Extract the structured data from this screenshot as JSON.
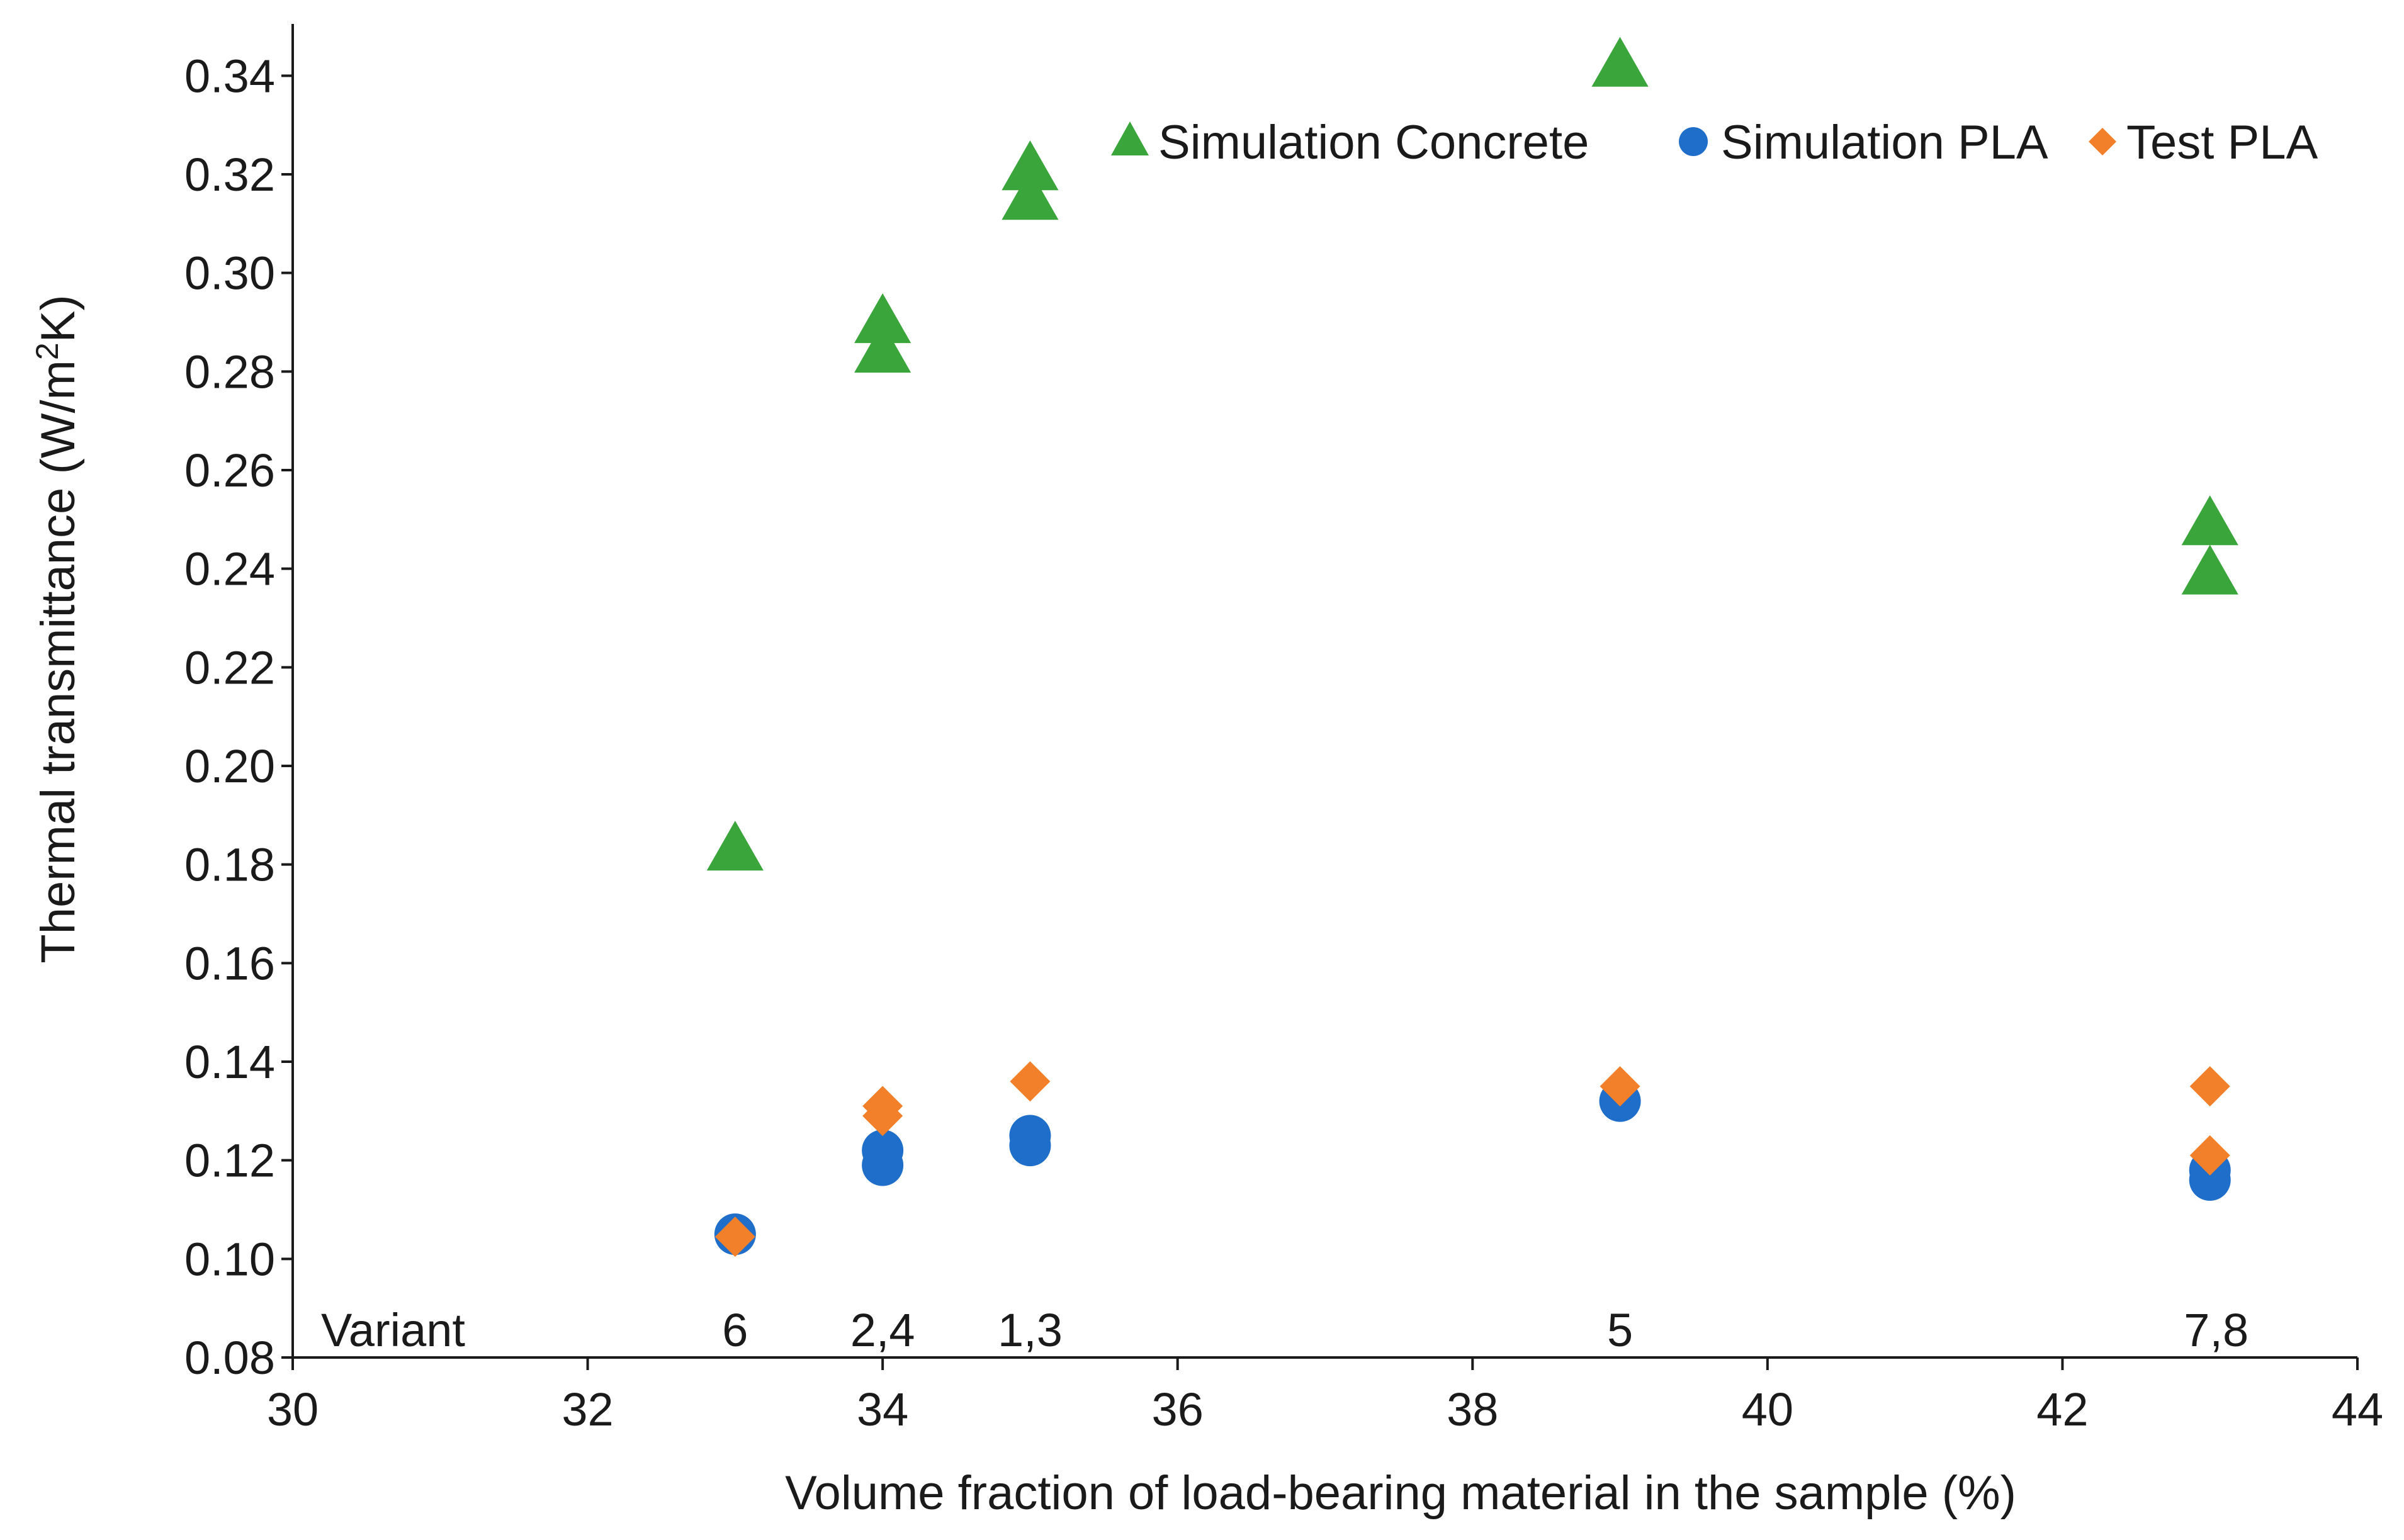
{
  "colors": {
    "concrete": "#3aa53a",
    "sim_pla": "#1f6ec9",
    "test_pla": "#f2802a",
    "axis": "#1a1a1a"
  },
  "chart_data": {
    "type": "scatter",
    "title": "",
    "xlabel": "Volume fraction of load-bearing material in the sample (%)",
    "ylabel": "Thermal transmittance (W/m²K)",
    "xlim": [
      30,
      44
    ],
    "ylim": [
      0.08,
      0.35
    ],
    "xticks": [
      30,
      32,
      34,
      36,
      38,
      40,
      42,
      44
    ],
    "xtick_labels": [
      "30",
      "32",
      "34",
      "36",
      "38",
      "40",
      "42",
      "44"
    ],
    "yticks": [
      0.08,
      0.1,
      0.12,
      0.14,
      0.16,
      0.18,
      0.2,
      0.22,
      0.24,
      0.26,
      0.28,
      0.3,
      0.32,
      0.34
    ],
    "ytick_labels": [
      "0.08",
      "0.10",
      "0.12",
      "0.14",
      "0.16",
      "0.18",
      "0.20",
      "0.22",
      "0.24",
      "0.26",
      "0.28",
      "0.30",
      "0.32",
      "0.34"
    ],
    "legend_position": "top-right",
    "series": [
      {
        "name": "Simulation Concrete",
        "marker": "triangle",
        "points": [
          [
            33,
            0.183
          ],
          [
            34,
            0.29
          ],
          [
            34,
            0.284
          ],
          [
            35,
            0.321
          ],
          [
            35,
            0.315
          ],
          [
            39,
            0.342
          ],
          [
            43,
            0.249
          ],
          [
            43,
            0.239
          ]
        ]
      },
      {
        "name": "Simulation PLA",
        "marker": "circle",
        "points": [
          [
            33,
            0.105
          ],
          [
            34,
            0.122
          ],
          [
            34,
            0.119
          ],
          [
            35,
            0.125
          ],
          [
            35,
            0.123
          ],
          [
            39,
            0.132
          ],
          [
            43,
            0.118
          ],
          [
            43,
            0.116
          ]
        ]
      },
      {
        "name": "Test PLA",
        "marker": "diamond",
        "points": [
          [
            33,
            0.1045
          ],
          [
            34,
            0.131
          ],
          [
            34,
            0.129
          ],
          [
            35,
            0.136
          ],
          [
            39,
            0.135
          ],
          [
            43,
            0.135
          ],
          [
            43,
            0.121
          ]
        ]
      }
    ],
    "annotations": {
      "row_title": "Variant",
      "items": [
        {
          "x": 33,
          "label": "6"
        },
        {
          "x": 34,
          "label": "2,4"
        },
        {
          "x": 35,
          "label": "1,3"
        },
        {
          "x": 39,
          "label": "5"
        },
        {
          "x": 43,
          "label": "7,8"
        }
      ]
    }
  }
}
